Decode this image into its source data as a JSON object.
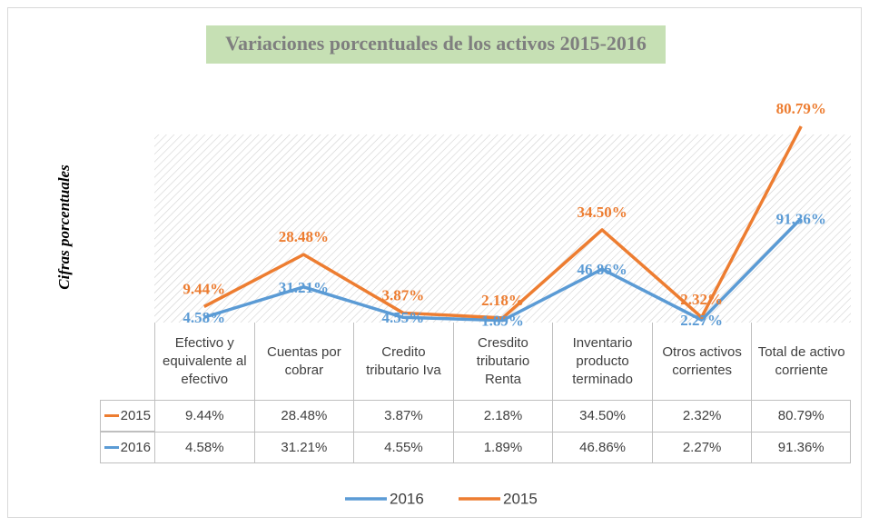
{
  "chart_data": {
    "type": "line",
    "stacked": true,
    "title": "Variaciones porcentuales de los activos 2015-2016",
    "y_label": "Cifras porcentuales",
    "categories": [
      "Efectivo y equivalente al efectivo",
      "Cuentas por cobrar",
      "Credito tributario Iva",
      "Cresdito tributario Renta",
      "Inventario producto terminado",
      "Otros activos corrientes",
      "Total de activo corriente"
    ],
    "ylim": [
      0,
      165
    ],
    "legend": "bottom",
    "series": [
      {
        "name": "2016",
        "color": "#5b9bd5",
        "values": [
          4.58,
          31.21,
          4.55,
          1.89,
          46.86,
          2.27,
          91.36
        ],
        "value_labels": [
          "4.58%",
          "31.21%",
          "4.55%",
          "1.89%",
          "46.86%",
          "2.27%",
          "91.36%"
        ]
      },
      {
        "name": "2015",
        "color": "#ed7d31",
        "values": [
          9.44,
          28.48,
          3.87,
          2.18,
          34.5,
          2.32,
          80.79
        ],
        "value_labels": [
          "9.44%",
          "28.48%",
          "3.87%",
          "2.18%",
          "34.50%",
          "2.32%",
          "80.79%"
        ]
      }
    ]
  }
}
